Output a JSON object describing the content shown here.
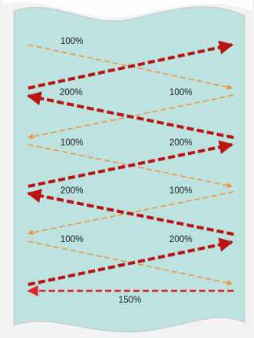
{
  "diagram": {
    "colors": {
      "page_background": "#f2f2f2",
      "panel_fill": "#bde3e0",
      "panel_edge": "#c9c9c9",
      "thin_arrow": "#f0923a",
      "thick_arrow": "#b81414",
      "bottom_arrow": "#e0222a"
    },
    "labels": [
      {
        "id": "l1",
        "text": "100%"
      },
      {
        "id": "l2",
        "text": "200%"
      },
      {
        "id": "l3",
        "text": "100%"
      },
      {
        "id": "l4",
        "text": "100%"
      },
      {
        "id": "l5",
        "text": "200%"
      },
      {
        "id": "l6",
        "text": "200%"
      },
      {
        "id": "l7",
        "text": "100%"
      },
      {
        "id": "l8",
        "text": "100%"
      },
      {
        "id": "l9",
        "text": "200%"
      },
      {
        "id": "l10",
        "text": "150%"
      }
    ]
  }
}
